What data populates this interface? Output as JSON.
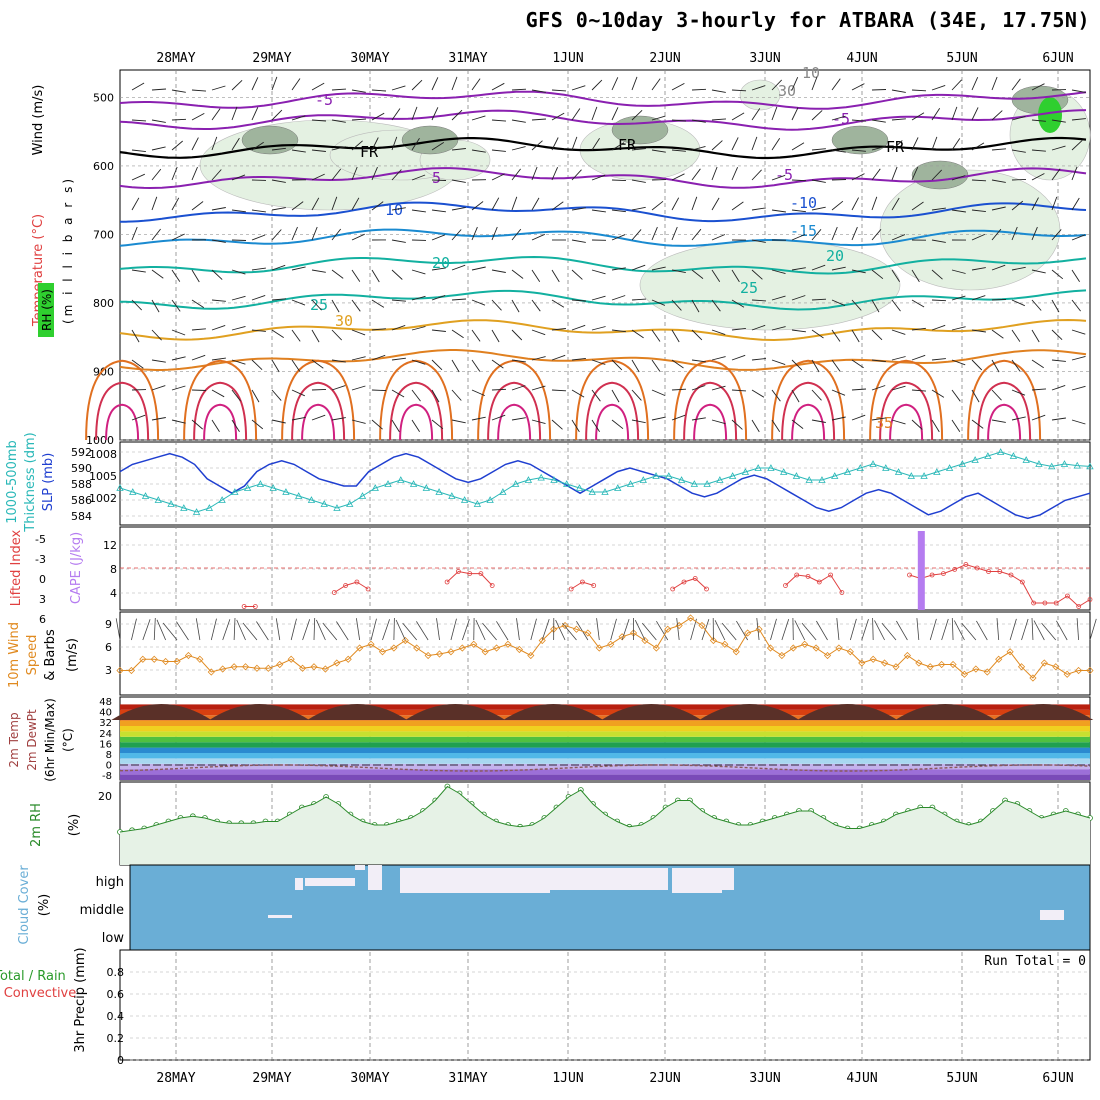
{
  "title": "GFS 0~10day 3-hourly for ATBARA (34E, 17.75N)",
  "dates": [
    "28MAY",
    "29MAY",
    "30MAY",
    "31MAY",
    "1JUN",
    "2JUN",
    "3JUN",
    "4JUN",
    "5JUN",
    "6JUN"
  ],
  "panels": {
    "upper": {
      "labels": [
        "RH (%)",
        "Temperature (°C)",
        "Wind (m/s)"
      ],
      "ylabel": "(m i l l i b a r s)",
      "pressure_ticks": [
        "500",
        "600",
        "700",
        "800",
        "900",
        "1000"
      ],
      "contour_labels": [
        "-5",
        "FR",
        "5",
        "10",
        "15",
        "20",
        "25",
        "30",
        "35",
        "-5",
        "FR",
        "-5",
        "-10",
        "-15",
        "20",
        "25",
        "FR",
        "10",
        "30"
      ]
    },
    "thick": {
      "labels": [
        "1000-500mb",
        "Thickness (dm)",
        "SLP (mb)"
      ],
      "left_ticks": [
        "592",
        "590",
        "588",
        "586",
        "584"
      ],
      "right_ticks": [
        "1008",
        "1005",
        "1002"
      ]
    },
    "cape": {
      "labels": [
        "Lifted Index",
        "CAPE (J/kg)"
      ],
      "left_ticks": [
        "-5",
        "-3",
        "0",
        "3",
        "6"
      ],
      "right_ticks": [
        "12",
        "8",
        "4"
      ]
    },
    "wind10": {
      "labels": [
        "10m Wind",
        "Speed",
        "& Barbs",
        "(m/s)"
      ],
      "ticks": [
        "9",
        "6",
        "3"
      ]
    },
    "temp2m": {
      "labels": [
        "2m Temp",
        "2m DewPt",
        "(6hr Min/Max)",
        "(°C)"
      ],
      "ticks": [
        "48",
        "40",
        "32",
        "24",
        "16",
        "8",
        "0",
        "-8"
      ]
    },
    "rh2m": {
      "labels": [
        "2m RH",
        "(%)"
      ],
      "ticks": [
        "20"
      ]
    },
    "cloud": {
      "labels": [
        "Cloud Cover",
        "(%)"
      ],
      "layers": [
        "high",
        "middle",
        "low"
      ]
    },
    "precip": {
      "labels": [
        "Total / Rain",
        "Convective",
        "3hr Precip (mm)"
      ],
      "ticks": [
        "0.8",
        "0.6",
        "0.4",
        "0.2",
        "0"
      ],
      "run_total": "Run Total = 0"
    }
  },
  "colors": {
    "slp": "#1f3fd0",
    "thickness": "#2ab8b8",
    "lifted_index": "#e04040",
    "cape": "#b57cf0",
    "wind_speed": "#e08a20",
    "rh2m": "#2a8a2a",
    "rh_fill": "#e6f2e6",
    "cloud": "#6aaed6",
    "freezing": "#000000"
  },
  "chart_data": [
    {
      "type": "line",
      "name": "SLP",
      "values": [
        1006,
        1007,
        1007.5,
        1008,
        1008.5,
        1008,
        1007,
        1005,
        1004,
        1003,
        1004,
        1006,
        1007,
        1007.5,
        1007,
        1006,
        1005,
        1004.5,
        1004,
        1004,
        1006,
        1007,
        1008,
        1008.5,
        1008,
        1007,
        1006,
        1005,
        1004.5,
        1005,
        1006,
        1007,
        1007.5,
        1007,
        1006,
        1005,
        1004,
        1003,
        1004,
        1005,
        1006,
        1006.5,
        1006,
        1005.5,
        1005,
        1004,
        1003,
        1002.5,
        1003,
        1004,
        1005,
        1005.5,
        1005,
        1004,
        1003,
        1002,
        1001,
        1000.5,
        1001,
        1002,
        1003,
        1003.5,
        1003,
        1002,
        1001,
        1000,
        1000.5,
        1001.5,
        1002.5,
        1003,
        1002,
        1001,
        1000,
        999.5,
        1000,
        1001,
        1002,
        1002.5,
        1003
      ]
    },
    {
      "type": "line",
      "name": "1000-500mb Thickness",
      "values": [
        587.5,
        587,
        586.5,
        586,
        585.5,
        585,
        584.5,
        585,
        586,
        587,
        587.5,
        588,
        587.5,
        587,
        586.5,
        586,
        585.5,
        585,
        585.5,
        586.5,
        587.5,
        588,
        588.5,
        588,
        587.5,
        587,
        586.5,
        586,
        585.5,
        586,
        587,
        588,
        588.5,
        588.8,
        588.5,
        588,
        587.5,
        587,
        587,
        587.5,
        588,
        588.5,
        589,
        589,
        588.5,
        588,
        588,
        588.5,
        589,
        589.5,
        590,
        590,
        589.5,
        589,
        588.5,
        588.5,
        589,
        589.5,
        590,
        590.5,
        590,
        589.5,
        589,
        589,
        589.5,
        590,
        590.5,
        591,
        591.5,
        592,
        591.5,
        591,
        590.5,
        590.2,
        590.5,
        590.3,
        590.2
      ]
    },
    {
      "type": "line",
      "name": "Lifted Index",
      "values": [
        null,
        null,
        null,
        null,
        null,
        null,
        null,
        null,
        null,
        null,
        null,
        5.5,
        5.5,
        null,
        null,
        null,
        null,
        null,
        null,
        3.5,
        2.5,
        2,
        3,
        null,
        null,
        null,
        null,
        null,
        null,
        2,
        0.5,
        0.8,
        0.8,
        2.5,
        null,
        null,
        null,
        null,
        null,
        null,
        3,
        2,
        2.5,
        null,
        null,
        null,
        null,
        null,
        null,
        3,
        2,
        1.5,
        3,
        null,
        null,
        null,
        null,
        null,
        null,
        2.5,
        1,
        1.2,
        2,
        1,
        3.5,
        null,
        null,
        null,
        null,
        null,
        1,
        1.5,
        1,
        0.8,
        0.2,
        -0.5,
        0,
        0.5,
        0.5,
        1,
        2,
        5,
        5,
        5,
        4,
        5.5,
        4.5
      ]
    },
    {
      "type": "bar",
      "name": "CAPE",
      "x_index": 71,
      "values": [
        15
      ]
    },
    {
      "type": "line",
      "name": "10m Wind Speed",
      "values": [
        3,
        3,
        4.5,
        4.5,
        4.2,
        4.2,
        5,
        4.5,
        2.8,
        3.2,
        3.5,
        3.5,
        3.3,
        3.3,
        3.8,
        4.5,
        3.3,
        3.5,
        3.2,
        4,
        4.5,
        6,
        6.5,
        5.5,
        6,
        7,
        6,
        5,
        5.2,
        5.5,
        6,
        6.5,
        5.5,
        6,
        6.5,
        5.8,
        5,
        7,
        8.5,
        9,
        8.5,
        8,
        6,
        6.5,
        7.5,
        8,
        7,
        6,
        8.5,
        9,
        10,
        9,
        7,
        6.5,
        5.5,
        8,
        8.5,
        6,
        5,
        6,
        6.5,
        6,
        5,
        6,
        5.5,
        4,
        4.5,
        4,
        3.5,
        5,
        4,
        3.5,
        3.8,
        3.8,
        2.5,
        3.2,
        2.8,
        4.5,
        5.5,
        3.5,
        2,
        4,
        3.5,
        2.5,
        3,
        3
      ]
    },
    {
      "type": "line",
      "name": "2m RH",
      "values": [
        6,
        6.5,
        7,
        8,
        9,
        10,
        10.5,
        10,
        9,
        8.5,
        8.5,
        8.5,
        9,
        9,
        11,
        13,
        14,
        16,
        14,
        11,
        9,
        8,
        8,
        9,
        10,
        12,
        15,
        19,
        17,
        14,
        11,
        9,
        8,
        7.5,
        8,
        10,
        13,
        16,
        18,
        14,
        11,
        9,
        7.5,
        8,
        10,
        13,
        15,
        15,
        12,
        10,
        9,
        8,
        8,
        9,
        10,
        11,
        12,
        12,
        10,
        8,
        7,
        7,
        8,
        9,
        11,
        12,
        13,
        13,
        11,
        9,
        8,
        9,
        12,
        15,
        14,
        12,
        10,
        11,
        12,
        11,
        10
      ]
    },
    {
      "type": "bar",
      "name": "Cloud Cover high",
      "note": "fraction per 3-hourly step"
    },
    {
      "type": "line",
      "name": "3hr Precip",
      "values": [
        0,
        0,
        0,
        0,
        0,
        0,
        0,
        0,
        0,
        0
      ],
      "ylim": [
        0,
        0.9
      ]
    }
  ]
}
